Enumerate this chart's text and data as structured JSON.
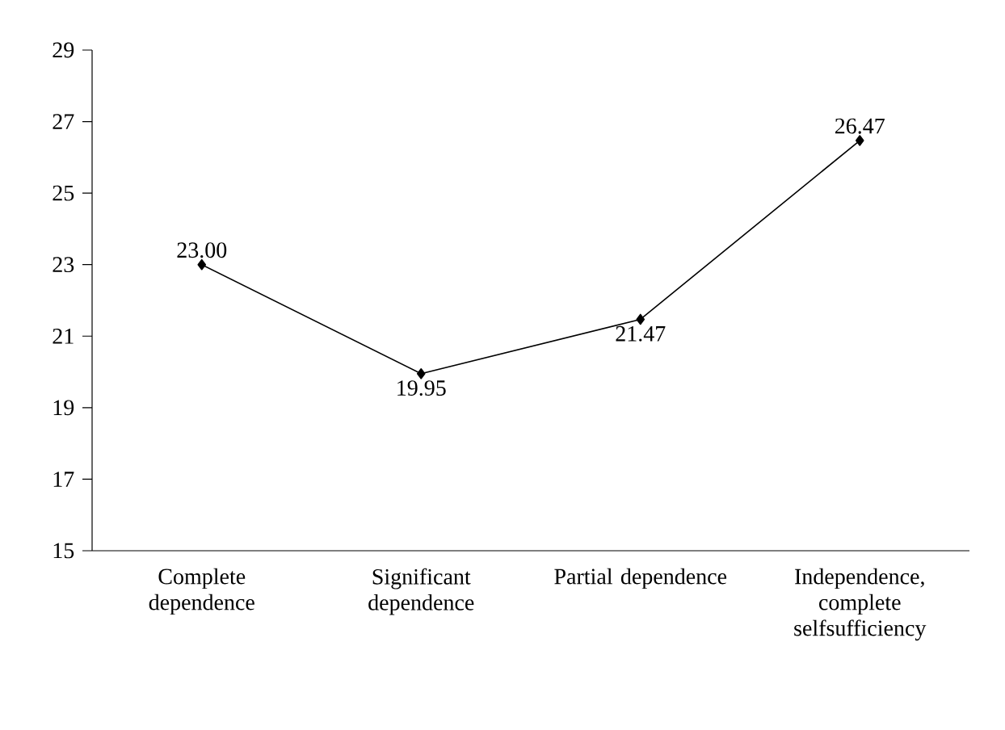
{
  "chart_data": {
    "type": "line",
    "categories": [
      "Complete dependence",
      "Significant dependence",
      "Partial dependence",
      "Independence, complete selfsufficiency"
    ],
    "values": [
      23.0,
      19.95,
      21.47,
      26.47
    ],
    "value_labels": [
      "23.00",
      "19.95",
      "21.47",
      "26.47"
    ],
    "color": "#000000",
    "marker": "diamond",
    "line_style": "solid",
    "ylim": [
      15,
      29
    ],
    "yticks": [
      15,
      17,
      19,
      21,
      23,
      25,
      27,
      29
    ],
    "grid": false
  }
}
